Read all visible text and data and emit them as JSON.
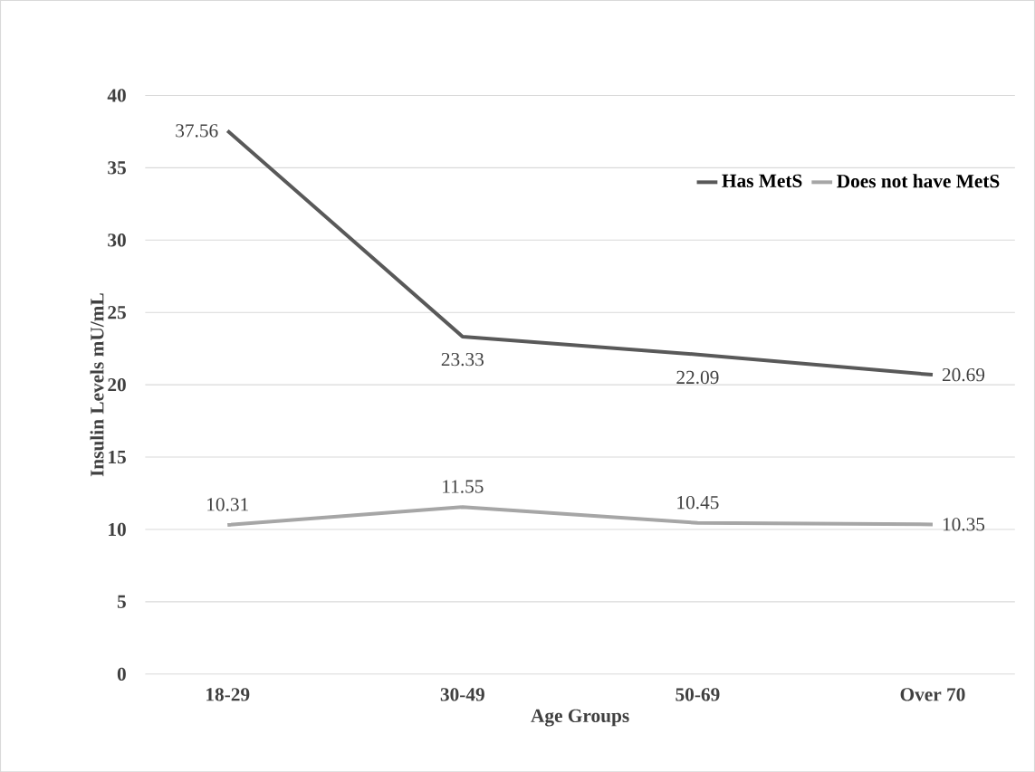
{
  "chart_data": {
    "type": "line",
    "xlabel": "Age Groups",
    "ylabel": "Insulin Levels mU/mL",
    "categories": [
      "18-29",
      "30-49",
      "50-69",
      "Over 70"
    ],
    "series": [
      {
        "name": "Has MetS",
        "color": "#595959",
        "values": [
          37.56,
          23.33,
          22.09,
          20.69
        ]
      },
      {
        "name": "Does not have MetS",
        "color": "#a6a6a6",
        "values": [
          10.31,
          11.55,
          10.45,
          10.35
        ]
      }
    ],
    "ylim": [
      0,
      40
    ],
    "yticks": [
      0,
      5,
      10,
      15,
      20,
      25,
      30,
      35,
      40
    ],
    "grid": "y",
    "legend": "top right",
    "data_labels": true,
    "marker": "none",
    "line_style": "solid"
  }
}
